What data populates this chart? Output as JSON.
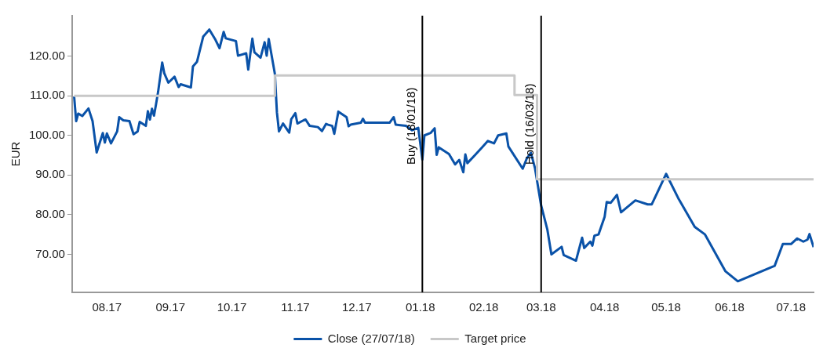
{
  "chart_data": {
    "type": "line",
    "ylabel": "EUR",
    "legend": "bottom",
    "grid": false,
    "marker": "none",
    "xlim": [
      "2017-07-15",
      "2018-07-12"
    ],
    "xticks": [
      {
        "value": "2017-08-01",
        "label": "08.17"
      },
      {
        "value": "2017-09-01",
        "label": "09.17"
      },
      {
        "value": "2017-10-01",
        "label": "10.17"
      },
      {
        "value": "2017-11-01",
        "label": "11.17"
      },
      {
        "value": "2017-12-01",
        "label": "12.17"
      },
      {
        "value": "2018-01-01",
        "label": "01.18"
      },
      {
        "value": "2018-02-01",
        "label": "02.18"
      },
      {
        "value": "2018-03-01",
        "label": "03.18"
      },
      {
        "value": "2018-04-01",
        "label": "04.18"
      },
      {
        "value": "2018-05-01",
        "label": "05.18"
      },
      {
        "value": "2018-06-01",
        "label": "06.18"
      },
      {
        "value": "2018-07-01",
        "label": "07.18"
      }
    ],
    "ylim": [
      60.4,
      130.2
    ],
    "yticks": [
      {
        "value": 70,
        "label": "70.00"
      },
      {
        "value": 80,
        "label": "80.00"
      },
      {
        "value": 90,
        "label": "90.00"
      },
      {
        "value": 100,
        "label": "100.00"
      },
      {
        "value": 110,
        "label": "110.00"
      },
      {
        "value": 120,
        "label": "120.00"
      }
    ],
    "series": [
      {
        "name": "Close (27/07/18)",
        "color": "#0a52a8",
        "line_style": "solid",
        "x": [
          "2017-07-16",
          "2017-07-17",
          "2017-07-18",
          "2017-07-20",
          "2017-07-23",
          "2017-07-25",
          "2017-07-27",
          "2017-07-30",
          "2017-07-31",
          "2017-08-01",
          "2017-08-03",
          "2017-08-06",
          "2017-08-07",
          "2017-08-09",
          "2017-08-12",
          "2017-08-14",
          "2017-08-16",
          "2017-08-17",
          "2017-08-20",
          "2017-08-21",
          "2017-08-22",
          "2017-08-23",
          "2017-08-24",
          "2017-08-25",
          "2017-08-26",
          "2017-08-28",
          "2017-08-29",
          "2017-08-31",
          "2017-09-03",
          "2017-09-05",
          "2017-09-06",
          "2017-09-11",
          "2017-09-12",
          "2017-09-14",
          "2017-09-17",
          "2017-09-20",
          "2017-09-23",
          "2017-09-25",
          "2017-09-27",
          "2017-09-28",
          "2017-10-03",
          "2017-10-04",
          "2017-10-08",
          "2017-10-09",
          "2017-10-11",
          "2017-10-12",
          "2017-10-15",
          "2017-10-17",
          "2017-10-18",
          "2017-10-19",
          "2017-10-22",
          "2017-10-23",
          "2017-10-24",
          "2017-10-26",
          "2017-10-29",
          "2017-10-30",
          "2017-11-01",
          "2017-11-02",
          "2017-11-05",
          "2017-11-06",
          "2017-11-08",
          "2017-11-12",
          "2017-11-14",
          "2017-11-16",
          "2017-11-17",
          "2017-11-19",
          "2017-11-20",
          "2017-11-22",
          "2017-11-26",
          "2017-11-27",
          "2017-11-28",
          "2017-12-03",
          "2017-12-04",
          "2017-12-05",
          "2017-12-17",
          "2017-12-19",
          "2017-12-20",
          "2017-12-25",
          "2017-12-28",
          "2017-12-31",
          "2018-01-02",
          "2018-01-03",
          "2018-01-06",
          "2018-01-08",
          "2018-01-09",
          "2018-01-10",
          "2018-01-15",
          "2018-01-18",
          "2018-01-20",
          "2018-01-22",
          "2018-01-23",
          "2018-01-24",
          "2018-01-28",
          "2018-01-31",
          "2018-02-03",
          "2018-02-06",
          "2018-02-08",
          "2018-02-12",
          "2018-02-13",
          "2018-02-20",
          "2018-02-22",
          "2018-02-24",
          "2018-02-26",
          "2018-03-01",
          "2018-03-04",
          "2018-03-06",
          "2018-03-11",
          "2018-03-12",
          "2018-03-18",
          "2018-03-21",
          "2018-03-22",
          "2018-03-25",
          "2018-03-26",
          "2018-03-27",
          "2018-03-29",
          "2018-04-01",
          "2018-04-02",
          "2018-04-04",
          "2018-04-07",
          "2018-04-09",
          "2018-04-16",
          "2018-04-22",
          "2018-04-24",
          "2018-05-01",
          "2018-05-07",
          "2018-05-15",
          "2018-05-20",
          "2018-05-30",
          "2018-06-05",
          "2018-06-23",
          "2018-06-27",
          "2018-07-01",
          "2018-07-04",
          "2018-07-07",
          "2018-07-09",
          "2018-07-10",
          "2018-07-12"
        ],
        "values": [
          109.8,
          103.6,
          105.5,
          104.9,
          106.8,
          103.6,
          95.7,
          100.6,
          98.2,
          100.5,
          98.0,
          101.0,
          104.6,
          103.8,
          103.6,
          100.3,
          101.0,
          103.4,
          102.4,
          106.1,
          104.0,
          106.7,
          105.0,
          107.9,
          111.0,
          118.4,
          115.7,
          113.3,
          114.8,
          112.2,
          112.9,
          112.1,
          117.4,
          118.6,
          124.9,
          126.7,
          124.1,
          122.0,
          126.1,
          124.5,
          123.8,
          120.1,
          120.7,
          116.6,
          124.4,
          121.0,
          119.6,
          123.5,
          120.1,
          124.3,
          115.5,
          105.8,
          101.0,
          103.0,
          100.7,
          104.1,
          105.6,
          103.0,
          103.8,
          104.0,
          102.4,
          102.1,
          101.1,
          102.9,
          102.7,
          102.4,
          100.4,
          106.0,
          104.6,
          102.3,
          102.7,
          103.2,
          104.2,
          103.2,
          103.2,
          104.6,
          102.7,
          102.4,
          101.3,
          101.9,
          93.9,
          100.0,
          100.6,
          101.8,
          95.1,
          97.0,
          95.3,
          92.7,
          93.8,
          90.7,
          95.2,
          93.0,
          95.2,
          96.9,
          98.6,
          98.0,
          100.0,
          100.5,
          97.2,
          91.6,
          94.2,
          95.6,
          91.7,
          82.3,
          76.3,
          70.0,
          71.9,
          69.8,
          68.4,
          74.2,
          71.6,
          73.2,
          72.2,
          74.7,
          75.0,
          79.5,
          83.2,
          83.0,
          85.0,
          80.6,
          83.6,
          82.6,
          82.6,
          90.3,
          84.1,
          76.9,
          75.0,
          65.7,
          63.2,
          67.1,
          72.6,
          72.6,
          74.0,
          73.2,
          73.7,
          75.1,
          71.8
        ]
      },
      {
        "name": "Target price",
        "type": "step",
        "color": "#c8c8c8",
        "line_style": "solid",
        "x": [
          "2017-07-16",
          "2017-10-22",
          "2018-02-16",
          "2018-02-27",
          "2018-07-12"
        ],
        "values": [
          110.0,
          115.1,
          110.2,
          88.9,
          88.9
        ]
      }
    ],
    "ref_lines": [
      {
        "axis": "x",
        "value": "2018-01-02",
        "label": "Buy (18/01/18)",
        "color": "#000000",
        "line_style": "solid"
      },
      {
        "axis": "x",
        "value": "2018-03-01",
        "label": "Hold (16/03/18)",
        "color": "#000000",
        "line_style": "solid"
      }
    ]
  }
}
